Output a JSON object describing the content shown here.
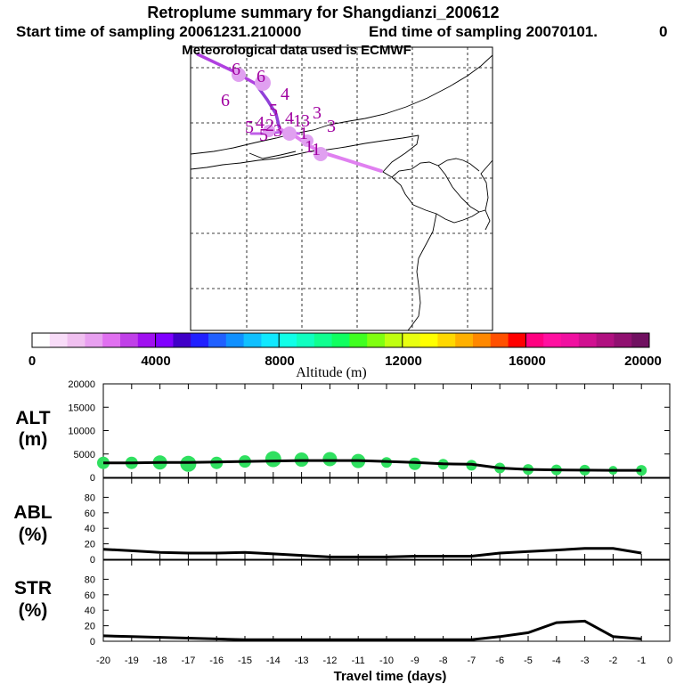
{
  "title": {
    "line1": "Retroplume summary for Shangdianzi_200612",
    "start": "Start time of sampling 20061231.210000",
    "end": "End time of sampling 20070101.",
    "end_extra": "0",
    "met": "Meteorological data used is ECMWF"
  },
  "colorbar": {
    "label": "Altitude (m)",
    "ticks": [
      "0",
      "4000",
      "8000",
      "12000",
      "16000",
      "20000"
    ],
    "colors": [
      "#ffffff",
      "#f8dcf8",
      "#f0c0f0",
      "#e8a0f0",
      "#e070f0",
      "#c040e8",
      "#a010f0",
      "#8000ff",
      "#4000c8",
      "#2020ff",
      "#2060ff",
      "#1090ff",
      "#10c0ff",
      "#10e8ff",
      "#10ffe8",
      "#10ffc0",
      "#10ff90",
      "#10ff60",
      "#40ff20",
      "#80ff10",
      "#c0ff10",
      "#e8ff10",
      "#ffff00",
      "#ffd800",
      "#ffb000",
      "#ff8800",
      "#ff5000",
      "#ff0000",
      "#ff0080",
      "#ff10a0",
      "#f010a0",
      "#d01090",
      "#b01080",
      "#901070",
      "#701060"
    ]
  },
  "map": {
    "markers": [
      {
        "t": "6",
        "x": 265,
        "y": 84
      },
      {
        "t": "6",
        "x": 293,
        "y": 92
      },
      {
        "t": "6",
        "x": 253,
        "y": 119
      },
      {
        "t": "4",
        "x": 320,
        "y": 112
      },
      {
        "t": "5",
        "x": 307,
        "y": 130
      },
      {
        "t": "5",
        "x": 280,
        "y": 149
      },
      {
        "t": "4",
        "x": 292,
        "y": 144
      },
      {
        "t": "2",
        "x": 303,
        "y": 147
      },
      {
        "t": "5",
        "x": 296,
        "y": 158
      },
      {
        "t": "3",
        "x": 312,
        "y": 153
      },
      {
        "t": "4",
        "x": 325,
        "y": 139
      },
      {
        "t": "1",
        "x": 334,
        "y": 142
      },
      {
        "t": "3",
        "x": 343,
        "y": 142
      },
      {
        "t": "3",
        "x": 356,
        "y": 133
      },
      {
        "t": "3",
        "x": 372,
        "y": 148
      },
      {
        "t": "1",
        "x": 341,
        "y": 156
      },
      {
        "t": "1",
        "x": 347,
        "y": 171
      },
      {
        "t": "1",
        "x": 355,
        "y": 174
      }
    ]
  },
  "chart_data": [
    {
      "type": "line",
      "label": "ALT",
      "unit": "(m)",
      "x": [
        -20,
        -19,
        -18,
        -17,
        -16,
        -15,
        -14,
        -13,
        -12,
        -11,
        -10,
        -9,
        -8,
        -7,
        -6,
        -5,
        -4,
        -3,
        -2,
        -1
      ],
      "y": [
        3100,
        3100,
        3200,
        3200,
        3300,
        3400,
        3500,
        3600,
        3600,
        3600,
        3400,
        3200,
        2900,
        2800,
        2000,
        1700,
        1600,
        1550,
        1500,
        1500
      ],
      "ylim": [
        0,
        20000
      ],
      "yticks": [
        "0",
        "5000",
        "10000",
        "15000",
        "20000"
      ],
      "yticks_val": [
        0,
        5000,
        10000,
        15000,
        20000
      ],
      "points_y": [
        3100,
        3100,
        3200,
        2900,
        3100,
        3400,
        3900,
        3800,
        3900,
        3500,
        3200,
        2900,
        2800,
        2600,
        2000,
        1700,
        1600,
        1550,
        1500,
        1500
      ],
      "points_r": [
        7,
        7,
        8,
        9,
        7,
        7,
        9,
        8,
        8,
        8,
        6,
        7,
        6,
        6,
        6,
        6,
        6,
        6,
        5,
        6
      ],
      "point_color": "#30e060"
    },
    {
      "type": "line",
      "label": "ABL",
      "unit": "(%)",
      "x": [
        -20,
        -19,
        -18,
        -17,
        -16,
        -15,
        -14,
        -13,
        -12,
        -11,
        -10,
        -9,
        -8,
        -7,
        -6,
        -5,
        -4,
        -3,
        -2,
        -1
      ],
      "y": [
        13,
        11,
        9,
        8,
        8,
        9,
        7,
        5,
        3,
        3,
        3,
        4,
        4,
        4,
        8,
        10,
        12,
        14,
        14,
        8
      ],
      "ylim": [
        0,
        100
      ],
      "yticks": [
        "0",
        "20",
        "40",
        "60",
        "80"
      ],
      "yticks_val": [
        0,
        20,
        40,
        60,
        80
      ]
    },
    {
      "type": "line",
      "label": "STR",
      "unit": "(%)",
      "x": [
        -20,
        -19,
        -18,
        -17,
        -16,
        -15,
        -14,
        -13,
        -12,
        -11,
        -10,
        -9,
        -8,
        -7,
        -6,
        -5,
        -4,
        -3,
        -2,
        -1
      ],
      "y": [
        7,
        6,
        5,
        4,
        3,
        2,
        2,
        2,
        2,
        2,
        2,
        2,
        2,
        2,
        6,
        11,
        24,
        26,
        6,
        3
      ],
      "ylim": [
        0,
        100
      ],
      "yticks": [
        "0",
        "20",
        "40",
        "60",
        "80"
      ],
      "yticks_val": [
        0,
        20,
        40,
        60,
        80
      ],
      "xlabel": "Travel time (days)",
      "xticks": [
        "-20",
        "-19",
        "-18",
        "-17",
        "-16",
        "-15",
        "-14",
        "-13",
        "-12",
        "-11",
        "-10",
        "-9",
        "-8",
        "-7",
        "-6",
        "-5",
        "-4",
        "-3",
        "-2",
        "-1",
        "0"
      ]
    }
  ]
}
